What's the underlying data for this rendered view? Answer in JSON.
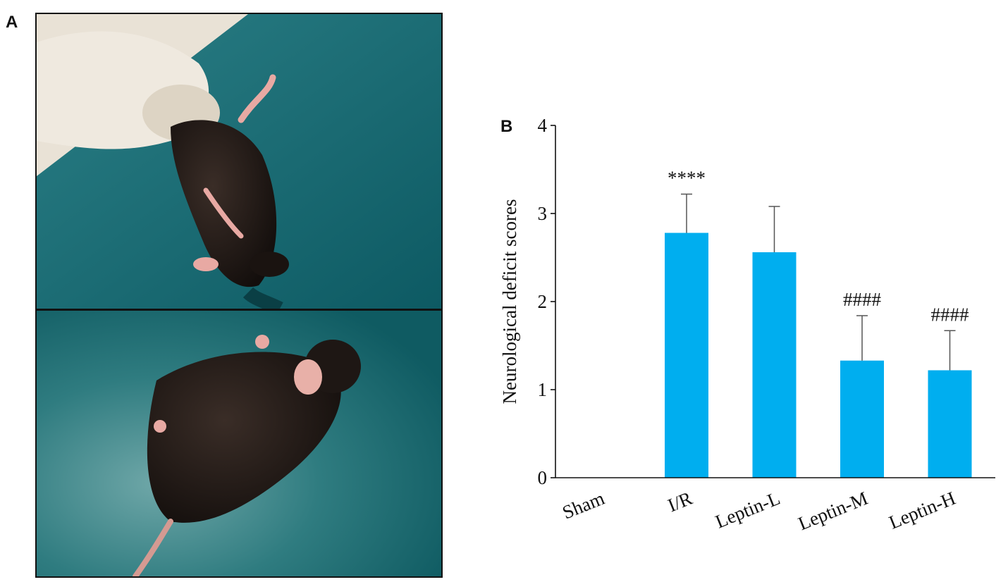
{
  "panels": {
    "a_label": "A",
    "b_label": "B"
  },
  "chart_data": {
    "type": "bar",
    "categories": [
      "Sham",
      "I/R",
      "Leptin-L",
      "Leptin-M",
      "Leptin-H"
    ],
    "values": [
      0,
      2.78,
      2.56,
      1.33,
      1.22
    ],
    "errors": [
      0,
      0.44,
      0.52,
      0.51,
      0.45
    ],
    "annotations": [
      "",
      "****",
      "",
      "####",
      "####"
    ],
    "ylabel": "Neurological deficit scores",
    "ylim": [
      0,
      4
    ],
    "yticks": [
      0,
      1,
      2,
      3,
      4
    ],
    "bar_color": "#00AEEF",
    "grid": false
  },
  "colors": {
    "photo_background": "#0f5e66",
    "mouse_fur": "#1e1714",
    "glove": "#e9e2d6",
    "paw": "#e8a9a3"
  }
}
